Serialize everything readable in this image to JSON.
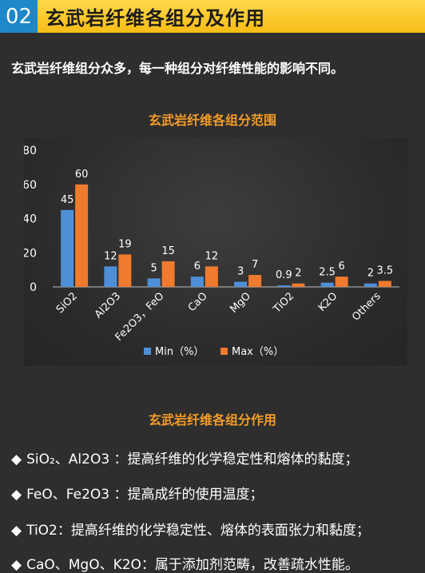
{
  "header": {
    "section_number": "02",
    "title": "玄武岩纤维各组分及作用"
  },
  "intro": "玄武岩纤维组分众多，每一种组分对纤维性能的影响不同。",
  "chart_data": {
    "type": "bar",
    "title": "玄武岩纤维各组分范围",
    "categories": [
      "SiO2",
      "Al2O3",
      "Fe2O3，FeO",
      "CaO",
      "MgO",
      "TiO2",
      "K2O",
      "Others"
    ],
    "series": [
      {
        "name": "Min（%）",
        "color": "#4f8fd8",
        "values": [
          45,
          12,
          5,
          6,
          3,
          0.9,
          2.5,
          2
        ]
      },
      {
        "name": "Max（%）",
        "color": "#f07a2e",
        "values": [
          60,
          19,
          15,
          12,
          7,
          2,
          6,
          3.5
        ]
      }
    ],
    "ylim": [
      0,
      80
    ],
    "yticks": [
      "0",
      "20",
      "40",
      "60",
      "80"
    ],
    "xlabel": "",
    "ylabel": "",
    "grid": false,
    "legend": "bottom"
  },
  "roles": {
    "title": "玄武岩纤维各组分作用",
    "items": [
      {
        "bullet": "◆",
        "text": "SiO₂、Al2O3 ：提高纤维的化学稳定性和熔体的黏度；"
      },
      {
        "bullet": "◆",
        "text": "FeO、Fe2O3 ：提高成纤的使用温度；"
      },
      {
        "bullet": "◆",
        "text": "TiO2：提高纤维的化学稳定性、熔体的表面张力和黏度；"
      },
      {
        "bullet": "◆",
        "text": "CaO、MgO、K2O：属于添加剂范畴，改善疏水性能。"
      }
    ]
  }
}
